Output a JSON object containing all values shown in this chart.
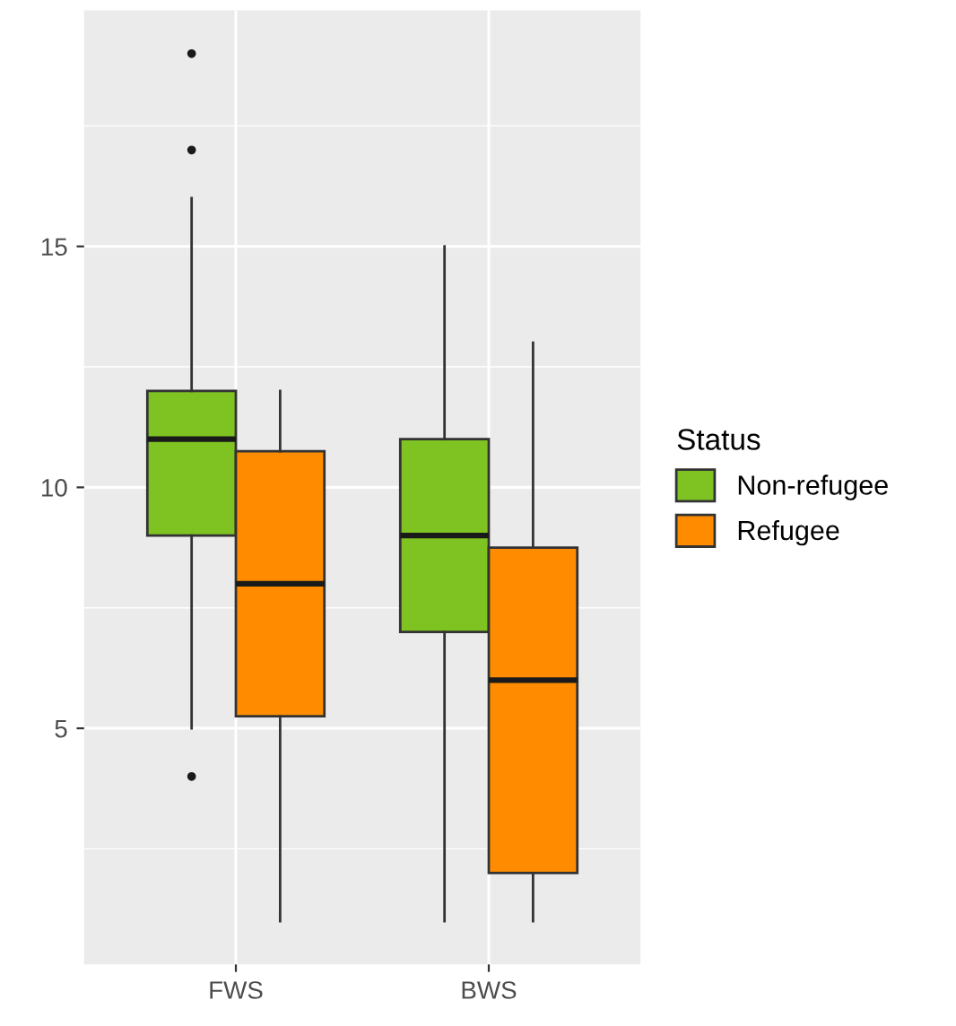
{
  "chart_data": {
    "type": "box",
    "categories": [
      "FWS",
      "BWS"
    ],
    "legend_title": "Status",
    "legend": "right",
    "grid": true,
    "ylim": [
      0.1,
      19.9
    ],
    "yticks": [
      5,
      10,
      15
    ],
    "series": [
      {
        "name": "Non-refugee",
        "color": "#7ec322",
        "boxes": [
          {
            "low": 5,
            "q1": 9,
            "median": 11,
            "q3": 12,
            "high": 16,
            "outliers": [
              4,
              17,
              19
            ]
          },
          {
            "low": 1,
            "q1": 7,
            "median": 9,
            "q3": 11,
            "high": 15
          }
        ]
      },
      {
        "name": "Refugee",
        "color": "#ff8c00",
        "boxes": [
          {
            "low": 1,
            "q1": 5.25,
            "median": 8,
            "q3": 10.75,
            "high": 12
          },
          {
            "low": 1,
            "q1": 2,
            "median": 6,
            "q3": 8.75,
            "high": 13
          }
        ]
      }
    ]
  }
}
